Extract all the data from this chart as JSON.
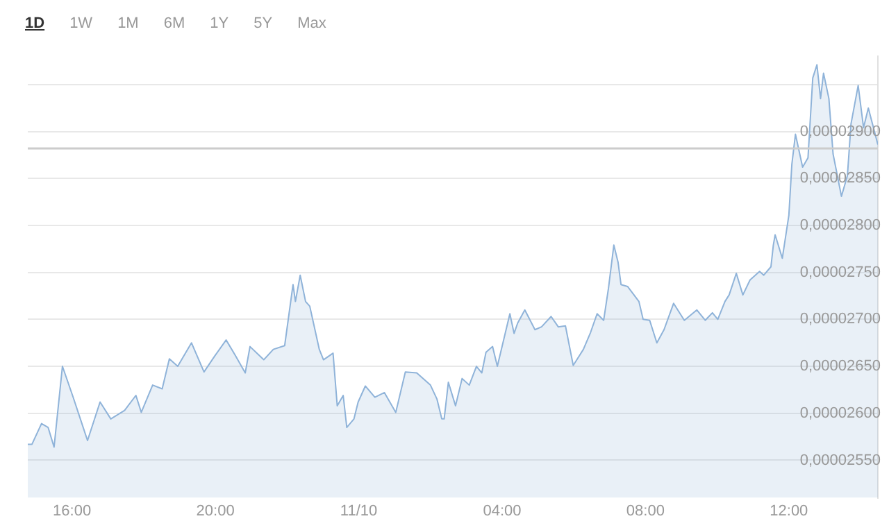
{
  "chart_data": {
    "type": "area",
    "annotations": [
      "1D",
      "1W",
      "1M",
      "6M",
      "1Y",
      "5Y",
      "Max"
    ],
    "x": [
      "--11-09T14:46",
      "--11-09T14:53",
      "--11-09T15:09",
      "--11-09T15:20",
      "--11-09T15:30",
      "--11-09T15:44",
      "--11-09T16:02",
      "--11-09T16:14",
      "--11-09T16:26",
      "--11-09T16:47",
      "--11-09T17:05",
      "--11-09T17:28",
      "--11-09T17:47",
      "--11-09T17:56",
      "--11-09T18:15",
      "--11-09T18:31",
      "--11-09T18:43",
      "--11-09T18:57",
      "--11-09T19:20",
      "--11-09T19:41",
      "--11-09T19:59",
      "--11-09T20:18",
      "--11-09T20:34",
      "--11-09T20:50",
      "--11-09T20:58",
      "--11-09T21:21",
      "--11-09T21:37",
      "--11-09T21:56",
      "--11-09T22:10",
      "--11-09T22:14",
      "--11-09T22:22",
      "--11-09T22:31",
      "--11-09T22:38",
      "--11-09T22:54",
      "--11-09T23:01",
      "--11-09T23:17",
      "--11-09T23:24",
      "--11-09T23:34",
      "--11-09T23:40",
      "--11-09T23:52",
      "--11-09T23:59",
      "--11-10T00:11",
      "--11-10T00:27",
      "--11-10T00:43",
      "--11-10T01:02",
      "--11-10T01:18",
      "--11-10T01:37",
      "--11-10T02:00",
      "--11-10T02:11",
      "--11-10T02:19",
      "--11-10T02:23",
      "--11-10T02:30",
      "--11-10T02:42",
      "--11-10T02:53",
      "--11-10T03:05",
      "--11-10T03:17",
      "--11-10T03:26",
      "--11-10T03:33",
      "--11-10T03:44",
      "--11-10T03:52",
      "--11-10T04:13",
      "--11-10T04:20",
      "--11-10T04:26",
      "--11-10T04:38",
      "--11-10T04:55",
      "--11-10T05:06",
      "--11-10T05:22",
      "--11-10T05:34",
      "--11-10T05:46",
      "--11-10T05:59",
      "--11-10T06:16",
      "--11-10T06:28",
      "--11-10T06:39",
      "--11-10T06:50",
      "--11-10T06:58",
      "--11-10T07:07",
      "--11-10T07:14",
      "--11-10T07:19",
      "--11-10T07:30",
      "--11-10T07:49",
      "--11-10T07:56",
      "--11-10T08:07",
      "--11-10T08:19",
      "--11-10T08:31",
      "--11-10T08:47",
      "--11-10T09:05",
      "--11-10T09:26",
      "--11-10T09:40",
      "--11-10T09:52",
      "--11-10T10:01",
      "--11-10T10:13",
      "--11-10T10:20",
      "--11-10T10:32",
      "--11-10T10:43",
      "--11-10T10:55",
      "--11-10T11:11",
      "--11-10T11:18",
      "--11-10T11:30",
      "--11-10T11:34",
      "--11-10T11:37",
      "--11-10T11:49",
      "--11-10T12:00",
      "--11-10T12:05",
      "--11-10T12:11",
      "--11-10T12:23",
      "--11-10T12:32",
      "--11-10T12:40",
      "--11-10T12:47",
      "--11-10T12:53",
      "--11-10T12:58",
      "--11-10T13:07",
      "--11-10T13:14",
      "--11-10T13:28",
      "--11-10T13:38",
      "--11-10T13:44",
      "--11-10T13:56",
      "--11-10T14:05",
      "--11-10T14:13",
      "--11-10T14:29"
    ],
    "series": [
      {
        "color": "#8fb3d9",
        "values": [
          2.567e-05,
          2.567e-05,
          2.589e-05,
          2.585e-05,
          2.564e-05,
          2.65e-05,
          2.617e-05,
          2.594e-05,
          2.571e-05,
          2.612e-05,
          2.594e-05,
          2.603e-05,
          2.619e-05,
          2.601e-05,
          2.63e-05,
          2.626e-05,
          2.658e-05,
          2.65e-05,
          2.675e-05,
          2.644e-05,
          2.661e-05,
          2.678e-05,
          2.661e-05,
          2.643e-05,
          2.671e-05,
          2.657e-05,
          2.668e-05,
          2.672e-05,
          2.737e-05,
          2.719e-05,
          2.747e-05,
          2.719e-05,
          2.714e-05,
          2.668e-05,
          2.657e-05,
          2.664e-05,
          2.608e-05,
          2.619e-05,
          2.585e-05,
          2.594e-05,
          2.612e-05,
          2.629e-05,
          2.617e-05,
          2.622e-05,
          2.601e-05,
          2.644e-05,
          2.643e-05,
          2.63e-05,
          2.615e-05,
          2.594e-05,
          2.594e-05,
          2.633e-05,
          2.608e-05,
          2.637e-05,
          2.63e-05,
          2.65e-05,
          2.643e-05,
          2.665e-05,
          2.671e-05,
          2.65e-05,
          2.706e-05,
          2.685e-05,
          2.696e-05,
          2.71e-05,
          2.689e-05,
          2.692e-05,
          2.703e-05,
          2.692e-05,
          2.693e-05,
          2.651e-05,
          2.668e-05,
          2.686e-05,
          2.706e-05,
          2.699e-05,
          2.733e-05,
          2.779e-05,
          2.761e-05,
          2.737e-05,
          2.735e-05,
          2.719e-05,
          2.7e-05,
          2.699e-05,
          2.675e-05,
          2.689e-05,
          2.717e-05,
          2.699e-05,
          2.71e-05,
          2.699e-05,
          2.707e-05,
          2.7e-05,
          2.719e-05,
          2.726e-05,
          2.749e-05,
          2.726e-05,
          2.742e-05,
          2.751e-05,
          2.747e-05,
          2.756e-05,
          2.779e-05,
          2.79e-05,
          2.765e-05,
          2.811e-05,
          2.865e-05,
          2.897e-05,
          2.862e-05,
          2.872e-05,
          2.957e-05,
          2.971e-05,
          2.935e-05,
          2.962e-05,
          2.935e-05,
          2.876e-05,
          2.831e-05,
          2.853e-05,
          2.908e-05,
          2.949e-05,
          2.904e-05,
          2.925e-05,
          2.886e-05
        ]
      }
    ],
    "xlim": [
      "--11-09T14:46",
      "--11-10T14:29"
    ],
    "xticks": [
      {
        "value": "--11-09T16:00",
        "label": "16:00"
      },
      {
        "value": "--11-09T20:00",
        "label": "20:00"
      },
      {
        "value": "--11-10T00:00",
        "label": "11/10"
      },
      {
        "value": "--11-10T04:00",
        "label": "04:00"
      },
      {
        "value": "--11-10T08:00",
        "label": "08:00"
      },
      {
        "value": "--11-10T12:00",
        "label": "12:00"
      }
    ],
    "ylim": [
      2.51e-05,
      2.98e-05
    ],
    "yticks": [
      {
        "value": 2.55e-05,
        "label": "0,00002550"
      },
      {
        "value": 2.6e-05,
        "label": "0,00002600"
      },
      {
        "value": 2.65e-05,
        "label": "0,00002650"
      },
      {
        "value": 2.7e-05,
        "label": "0,00002700"
      },
      {
        "value": 2.75e-05,
        "label": "0,00002750"
      },
      {
        "value": 2.8e-05,
        "label": "0,00002800"
      },
      {
        "value": 2.85e-05,
        "label": "0,00002850"
      },
      {
        "value": 2.9e-05,
        "label": "0,00002900"
      },
      {
        "value": 2.95e-05,
        "label": null
      }
    ],
    "ref_lines": [
      {
        "axis": "y",
        "value": 2.882e-05,
        "color": "#cccccc"
      }
    ],
    "grid": "y",
    "marker": "none",
    "legend": false
  }
}
